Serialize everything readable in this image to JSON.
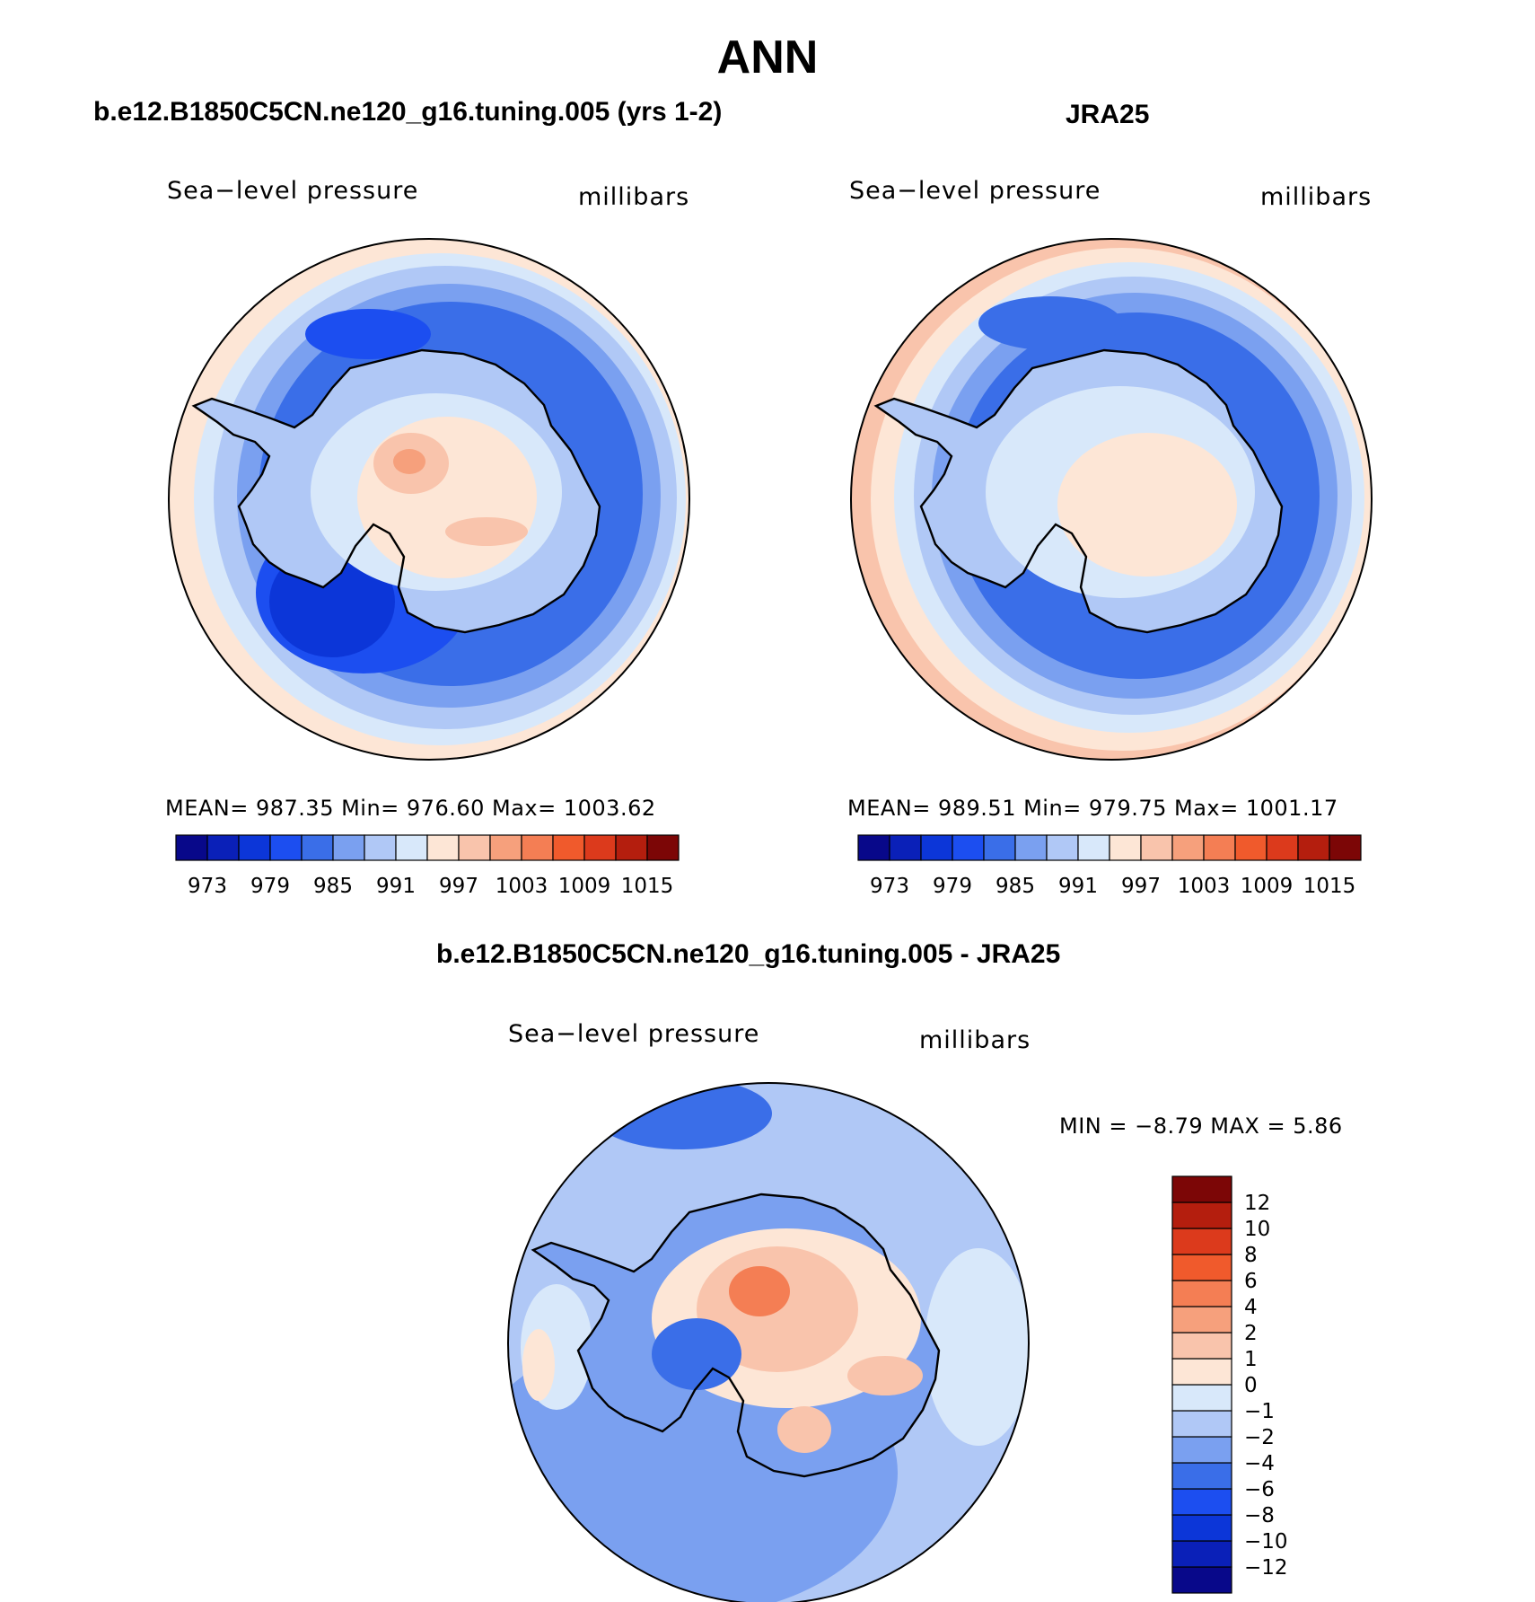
{
  "title": "ANN",
  "panels": [
    {
      "id": "model",
      "title": "b.e12.B1850C5CN.ne120_g16.tuning.005 (yrs 1-2)",
      "variable": "Sea−level pressure",
      "units": "millibars",
      "stats_text": "MEAN=  987.35    Min=  976.60    Max=  1003.62"
    },
    {
      "id": "obs",
      "title": "JRA25",
      "variable": "Sea−level pressure",
      "units": "millibars",
      "stats_text": "MEAN=  989.51    Min=  979.75    Max=  1001.17"
    },
    {
      "id": "diff",
      "title": "b.e12.B1850C5CN.ne120_g16.tuning.005 - JRA25",
      "variable": "Sea−level pressure",
      "units": "millibars",
      "stats_text": "MIN =    −8.79  MAX =     5.86"
    }
  ],
  "colorbar_abs": {
    "colors": [
      "#08088a",
      "#0a20b8",
      "#0c36d8",
      "#1c4ef0",
      "#3a6ee8",
      "#7aa0f0",
      "#b0c8f6",
      "#d8e8fa",
      "#fde6d6",
      "#f9c4ac",
      "#f6a07c",
      "#f47e54",
      "#f05a2c",
      "#dc3a1c",
      "#b41e0e",
      "#7c0606"
    ],
    "tick_labels": [
      "973",
      "979",
      "985",
      "991",
      "997",
      "1003",
      "1009",
      "1015"
    ]
  },
  "colorbar_diff": {
    "colors": [
      "#08088a",
      "#0a20b8",
      "#0c36d8",
      "#1c4ef0",
      "#3a6ee8",
      "#7aa0f0",
      "#b0c8f6",
      "#d8e8fa",
      "#fde6d6",
      "#f9c4ac",
      "#f6a07c",
      "#f47e54",
      "#f05a2c",
      "#dc3a1c",
      "#b41e0e",
      "#7c0606"
    ],
    "tick_labels": [
      "−12",
      "−10",
      "−8",
      "−6",
      "−4",
      "−2",
      "−1",
      "0",
      "1",
      "2",
      "4",
      "6",
      "8",
      "10",
      "12"
    ]
  },
  "chart_data": [
    {
      "type": "heatmap",
      "title": "b.e12.B1850C5CN.ne120_g16.tuning.005 (yrs 1-2)",
      "projection": "south polar stereographic",
      "variable": "Sea-level pressure",
      "units": "millibars",
      "mean": 987.35,
      "min": 976.6,
      "max": 1003.62,
      "contour_levels": [
        973,
        976,
        979,
        982,
        985,
        988,
        991,
        994,
        997,
        1000,
        1003,
        1006,
        1009,
        1012,
        1015
      ]
    },
    {
      "type": "heatmap",
      "title": "JRA25",
      "projection": "south polar stereographic",
      "variable": "Sea-level pressure",
      "units": "millibars",
      "mean": 989.51,
      "min": 979.75,
      "max": 1001.17,
      "contour_levels": [
        973,
        976,
        979,
        982,
        985,
        988,
        991,
        994,
        997,
        1000,
        1003,
        1006,
        1009,
        1012,
        1015
      ]
    },
    {
      "type": "heatmap",
      "title": "b.e12.B1850C5CN.ne120_g16.tuning.005 - JRA25",
      "projection": "south polar stereographic",
      "variable": "Sea-level pressure",
      "units": "millibars",
      "min": -8.79,
      "max": 5.86,
      "contour_levels": [
        -12,
        -10,
        -8,
        -6,
        -4,
        -2,
        -1,
        0,
        1,
        2,
        4,
        6,
        8,
        10,
        12
      ]
    }
  ]
}
